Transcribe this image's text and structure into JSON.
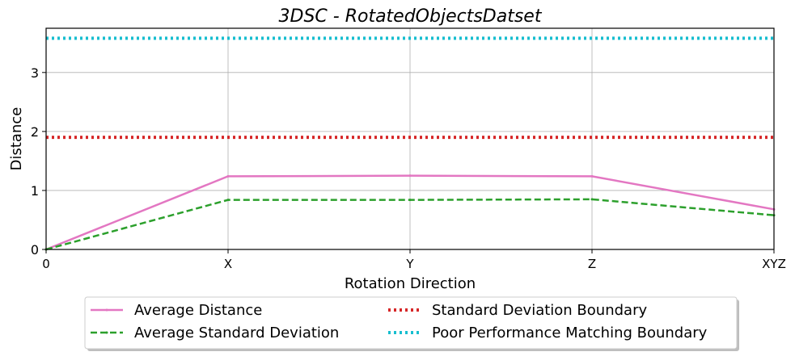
{
  "chart_data": {
    "type": "line",
    "title": "3DSC - RotatedObjectsDatset",
    "xlabel": "Rotation Direction",
    "ylabel": "Distance",
    "categories": [
      "0",
      "X",
      "Y",
      "Z",
      "XYZ"
    ],
    "ylim": [
      0,
      3.75
    ],
    "yticks": [
      "0",
      "1",
      "2",
      "3"
    ],
    "grid": true,
    "legend_position": "bottom-center",
    "series": [
      {
        "name": "Average Distance",
        "values": [
          0,
          1.24,
          1.25,
          1.24,
          0.68
        ],
        "color": "#e377c2",
        "style": "solid"
      },
      {
        "name": "Average Standard Deviation",
        "values": [
          0,
          0.84,
          0.84,
          0.85,
          0.58
        ],
        "color": "#2ca02c",
        "style": "dashed"
      },
      {
        "name": "Standard Deviation Boundary",
        "values": [
          1.9,
          1.9,
          1.9,
          1.9,
          1.9
        ],
        "color": "#d62728",
        "style": "dotted"
      },
      {
        "name": "Poor Performance Matching Boundary",
        "values": [
          3.58,
          3.58,
          3.58,
          3.58,
          3.58
        ],
        "color": "#17becf",
        "style": "dotted"
      }
    ]
  }
}
